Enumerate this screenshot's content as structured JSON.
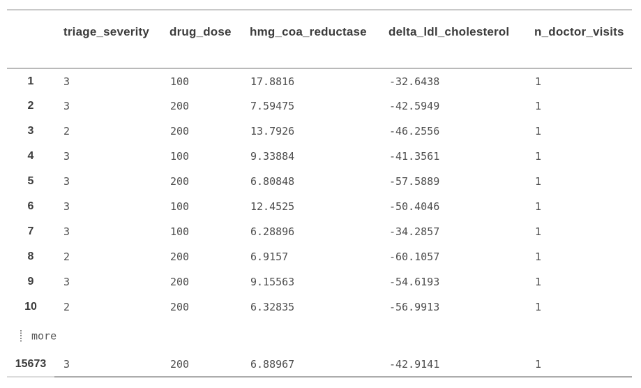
{
  "table": {
    "columns": [
      "triage_severity",
      "drug_dose",
      "hmg_coa_reductase",
      "delta_ldl_cholesterol",
      "n_doctor_visits"
    ],
    "rows": [
      {
        "index": "1",
        "cells": [
          "3",
          "100",
          "17.8816",
          "-32.6438",
          "1"
        ]
      },
      {
        "index": "2",
        "cells": [
          "3",
          "200",
          "7.59475",
          "-42.5949",
          "1"
        ]
      },
      {
        "index": "3",
        "cells": [
          "2",
          "200",
          "13.7926",
          "-46.2556",
          "1"
        ]
      },
      {
        "index": "4",
        "cells": [
          "3",
          "100",
          "9.33884",
          "-41.3561",
          "1"
        ]
      },
      {
        "index": "5",
        "cells": [
          "3",
          "200",
          "6.80848",
          "-57.5889",
          "1"
        ]
      },
      {
        "index": "6",
        "cells": [
          "3",
          "100",
          "12.4525",
          "-50.4046",
          "1"
        ]
      },
      {
        "index": "7",
        "cells": [
          "3",
          "100",
          "6.28896",
          "-34.2857",
          "1"
        ]
      },
      {
        "index": "8",
        "cells": [
          "2",
          "200",
          "6.9157",
          "-60.1057",
          "1"
        ]
      },
      {
        "index": "9",
        "cells": [
          "3",
          "200",
          "9.15563",
          "-54.6193",
          "1"
        ]
      },
      {
        "index": "10",
        "cells": [
          "2",
          "200",
          "6.32835",
          "-56.9913",
          "1"
        ]
      }
    ],
    "more": {
      "label": "more",
      "icon": "vertical-ellipsis-icon"
    },
    "last_row": {
      "index": "15673",
      "cells": [
        "3",
        "200",
        "6.88967",
        "-42.9141",
        "1"
      ]
    }
  },
  "colors": {
    "header_text": "#3c3c3c",
    "data_text": "#4e4e4e",
    "border_top": "#c9c9c9",
    "border_header": "#b9b9b9",
    "border_bottom": "#acacac"
  }
}
